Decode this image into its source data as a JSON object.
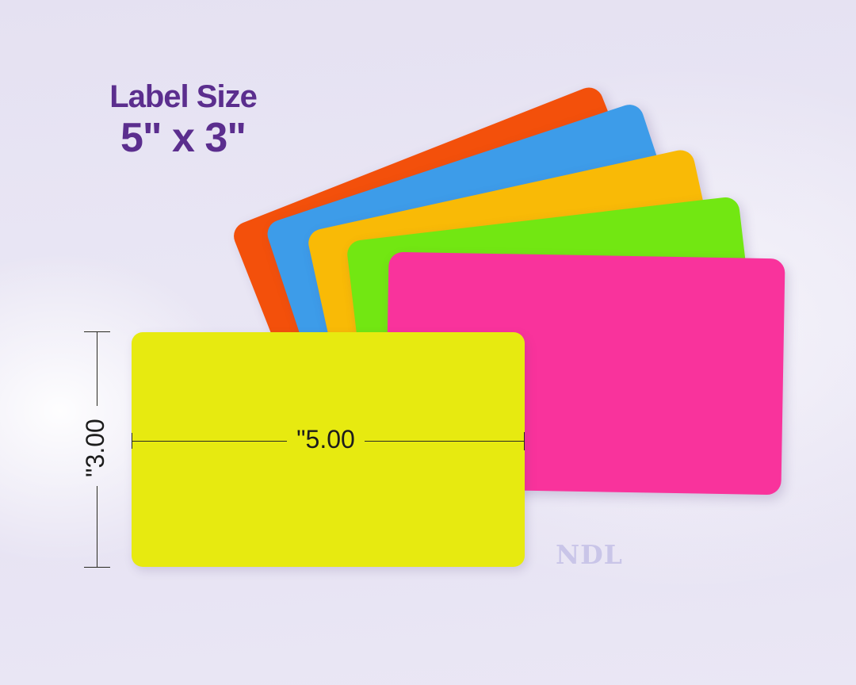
{
  "title": {
    "line1": "Label Size",
    "line2": "5\" x 3\""
  },
  "labels": [
    {
      "name": "orange",
      "color": "#f3500b"
    },
    {
      "name": "blue",
      "color": "#3d9ce9"
    },
    {
      "name": "gold",
      "color": "#f9ba06"
    },
    {
      "name": "green",
      "color": "#72e712"
    },
    {
      "name": "pink",
      "color": "#f9339c"
    },
    {
      "name": "yellow",
      "color": "#e7ea10"
    }
  ],
  "label_size": {
    "width_inches": 5,
    "height_inches": 3
  },
  "dimensions": {
    "width_label": "\"5.00",
    "height_label": "\"3.00"
  },
  "watermark": {
    "text": "NDL"
  },
  "colors": {
    "title_text": "#5b2e8e",
    "dimension_lines": "#2a2a22",
    "dimension_text": "#1c1c1c",
    "watermark_text": "#c9c5e8",
    "background_base": "#e7e3f3"
  }
}
